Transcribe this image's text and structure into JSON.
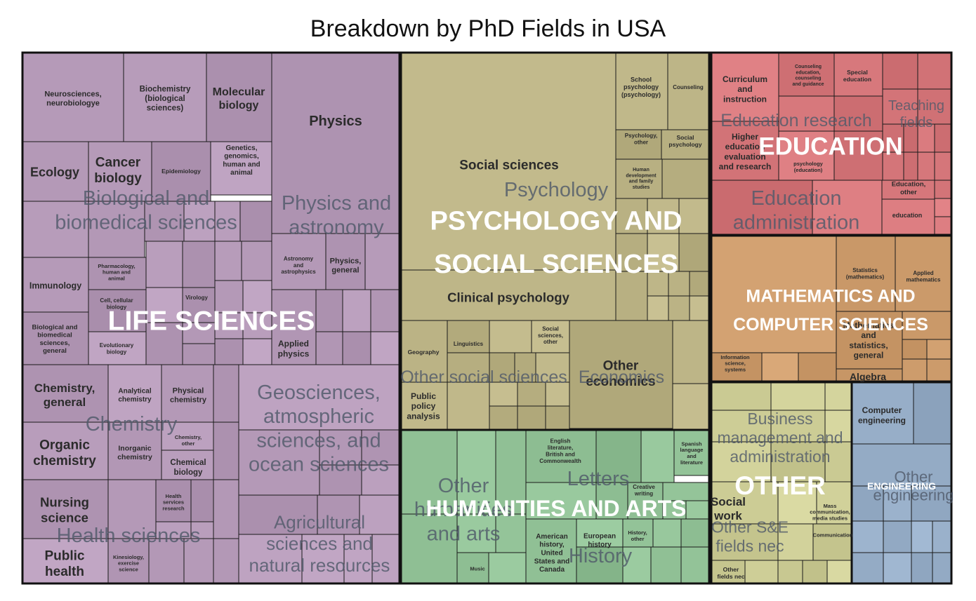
{
  "chart_data": {
    "type": "treemap",
    "title": "Breakdown by PhD Fields in USA",
    "colors": {
      "life": "#b59ab8",
      "psych": "#bcb486",
      "edu": "#d7787c",
      "math": "#cf9e6e",
      "hum": "#8fbf94",
      "other": "#cdcd96",
      "eng": "#97aec8"
    },
    "groups": [
      {
        "key": "life",
        "name": "LIFE SCIENCES",
        "subgroups": [
          {
            "name": "Biological and biomedical sciences",
            "lines": [
              "Biological and",
              "biomedical sciences"
            ]
          },
          {
            "name": "Physics and astronomy",
            "lines": [
              "Physics and",
              "astronomy"
            ]
          },
          {
            "name": "Chemistry",
            "lines": [
              "Chemistry"
            ]
          },
          {
            "name": "Geosciences, atmospheric sciences, and ocean sciences",
            "lines": [
              "Geosciences,",
              "atmospheric",
              "sciences, and",
              "ocean sciences"
            ]
          },
          {
            "name": "Agricultural sciences and natural resources",
            "lines": [
              "Agricultural",
              "sciences and",
              "natural resources"
            ]
          },
          {
            "name": "Health sciences",
            "lines": [
              "Health sciences"
            ]
          }
        ],
        "fields": [
          {
            "name": "Neurosciences, neurobiologye",
            "lines": [
              "Neurosciences,",
              "neurobiologye"
            ]
          },
          {
            "name": "Biochemistry (biological sciences)",
            "lines": [
              "Biochemistry",
              "(biological",
              "sciences)"
            ]
          },
          {
            "name": "Molecular biology",
            "lines": [
              "Molecular",
              "biology"
            ]
          },
          {
            "name": "Physics",
            "lines": [
              "Physics"
            ]
          },
          {
            "name": "Ecology",
            "lines": [
              "Ecology"
            ]
          },
          {
            "name": "Cancer biology",
            "lines": [
              "Cancer",
              "biology"
            ]
          },
          {
            "name": "Epidemiology",
            "lines": [
              "Epidemiology"
            ]
          },
          {
            "name": "Genetics, genomics, human and animal",
            "lines": [
              "Genetics,",
              "genomics,",
              "human and",
              "animal"
            ]
          },
          {
            "name": "Pharmacology, human and animal",
            "lines": [
              "Pharmacology,",
              "human and",
              "animal"
            ]
          },
          {
            "name": "Immunology",
            "lines": [
              "Immunology"
            ]
          },
          {
            "name": "Cell, cellular biology",
            "lines": [
              "Cell, cellular",
              "biology"
            ]
          },
          {
            "name": "Virology",
            "lines": [
              "Virology"
            ]
          },
          {
            "name": "Astronomy and astrophysics",
            "lines": [
              "Astronomy",
              "and",
              "astrophysics"
            ]
          },
          {
            "name": "Physics, general",
            "lines": [
              "Physics,",
              "general"
            ]
          },
          {
            "name": "Biological and biomedical sciences, general",
            "lines": [
              "Biological and",
              "biomedical",
              "sciences,",
              "general"
            ]
          },
          {
            "name": "Evolutionary biology",
            "lines": [
              "Evolutionary",
              "biology"
            ]
          },
          {
            "name": "Applied physics",
            "lines": [
              "Applied",
              "physics"
            ]
          },
          {
            "name": "Chemistry, general",
            "lines": [
              "Chemistry,",
              "general"
            ]
          },
          {
            "name": "Analytical chemistry",
            "lines": [
              "Analytical",
              "chemistry"
            ]
          },
          {
            "name": "Physical chemistry",
            "lines": [
              "Physical",
              "chemistry"
            ]
          },
          {
            "name": "Organic chemistry",
            "lines": [
              "Organic",
              "chemistry"
            ]
          },
          {
            "name": "Inorganic chemistry",
            "lines": [
              "Inorganic",
              "chemistry"
            ]
          },
          {
            "name": "Chemistry, other",
            "lines": [
              "Chemistry,",
              "other"
            ]
          },
          {
            "name": "Chemical biology",
            "lines": [
              "Chemical",
              "biology"
            ]
          },
          {
            "name": "Nursing science",
            "lines": [
              "Nursing",
              "science"
            ]
          },
          {
            "name": "Health services research",
            "lines": [
              "Health",
              "services",
              "research"
            ]
          },
          {
            "name": "Public health",
            "lines": [
              "Public",
              "health"
            ]
          },
          {
            "name": "Kinesiology, exercise science",
            "lines": [
              "Kinesiology,",
              "exercise",
              "science"
            ]
          }
        ]
      },
      {
        "key": "psych",
        "name": "PSYCHOLOGY AND SOCIAL SCIENCES",
        "lines": [
          "PSYCHOLOGY AND",
          "SOCIAL SCIENCES"
        ],
        "subgroups": [
          {
            "name": "Psychology",
            "lines": [
              "Psychology"
            ]
          },
          {
            "name": "Other social sciences",
            "lines": [
              "Other social sciences"
            ]
          },
          {
            "name": "Economics",
            "lines": [
              "Economics"
            ]
          }
        ],
        "fields": [
          {
            "name": "Social sciences",
            "lines": [
              "Social sciences"
            ]
          },
          {
            "name": "School psychology (psychology)",
            "lines": [
              "School",
              "psychology",
              "(psychology)"
            ]
          },
          {
            "name": "Counseling",
            "lines": [
              "Counseling"
            ]
          },
          {
            "name": "Psychology, other",
            "lines": [
              "Psychology,",
              "other"
            ]
          },
          {
            "name": "Social psychology",
            "lines": [
              "Social",
              "psychology"
            ]
          },
          {
            "name": "Human development and family studies",
            "lines": [
              "Human",
              "development",
              "and family",
              "studies"
            ]
          },
          {
            "name": "Clinical psychology",
            "lines": [
              "Clinical psychology"
            ]
          },
          {
            "name": "Geography",
            "lines": [
              "Geography"
            ]
          },
          {
            "name": "Linguistics",
            "lines": [
              "Linguistics"
            ]
          },
          {
            "name": "Social sciences, other",
            "lines": [
              "Social",
              "sciences,",
              "other"
            ]
          },
          {
            "name": "Public policy analysis",
            "lines": [
              "Public",
              "policy",
              "analysis"
            ]
          },
          {
            "name": "Other economics",
            "lines": [
              "Other",
              "economics"
            ]
          }
        ]
      },
      {
        "key": "edu",
        "name": "EDUCATION",
        "subgroups": [
          {
            "name": "Education research",
            "lines": [
              "Education research"
            ]
          },
          {
            "name": "Teaching fields",
            "lines": [
              "Teaching",
              "fields"
            ]
          },
          {
            "name": "Education administration",
            "lines": [
              "Education",
              "administration"
            ]
          }
        ],
        "fields": [
          {
            "name": "Curriculum and instruction",
            "lines": [
              "Curriculum",
              "and",
              "instruction"
            ]
          },
          {
            "name": "Counseling education, counseling and guidance",
            "lines": [
              "Counseling",
              "education,",
              "counseling",
              "and guidance"
            ]
          },
          {
            "name": "Special education",
            "lines": [
              "Special",
              "education"
            ]
          },
          {
            "name": "Higher education evaluation and research",
            "lines": [
              "Higher",
              "education",
              "evaluation",
              "and research"
            ]
          },
          {
            "name": "psychology (education)",
            "lines": [
              "psychology",
              "(education)"
            ]
          },
          {
            "name": "Education, other",
            "lines": [
              "Education,",
              "other"
            ]
          },
          {
            "name": "education",
            "lines": [
              "education"
            ]
          }
        ]
      },
      {
        "key": "math",
        "name": "MATHEMATICS AND COMPUTER SCIENCES",
        "lines": [
          "MATHEMATICS AND",
          "COMPUTER SCIENCES"
        ],
        "subgroups": [],
        "fields": [
          {
            "name": "Statistics (mathematics)",
            "lines": [
              "Statistics",
              "(mathematics)"
            ]
          },
          {
            "name": "Applied mathematics",
            "lines": [
              "Applied",
              "mathematics"
            ]
          },
          {
            "name": "Mathematics and statistics, general",
            "lines": [
              "Mathematics",
              "and",
              "statistics,",
              "general"
            ]
          },
          {
            "name": "Algebra",
            "lines": [
              "Algebra"
            ]
          },
          {
            "name": "Information science, systems",
            "lines": [
              "Information",
              "science,",
              "systems"
            ]
          }
        ]
      },
      {
        "key": "hum",
        "name": "HUMANITIES AND ARTS",
        "subgroups": [
          {
            "name": "Other humanities and arts",
            "lines": [
              "Other",
              "humanities",
              "and arts"
            ]
          },
          {
            "name": "Letters",
            "lines": [
              "Letters"
            ]
          },
          {
            "name": "History",
            "lines": [
              "History"
            ]
          }
        ],
        "fields": [
          {
            "name": "English literature, British and Commonwealth",
            "lines": [
              "English",
              "literature,",
              "British and",
              "Commonwealth"
            ]
          },
          {
            "name": "Spanish language and literature",
            "lines": [
              "Spanish",
              "language",
              "and",
              "literature"
            ]
          },
          {
            "name": "Creative writing",
            "lines": [
              "Creative",
              "writing"
            ]
          },
          {
            "name": "American history, United States and Canada",
            "lines": [
              "American",
              "history,",
              "United",
              "States and",
              "Canada"
            ]
          },
          {
            "name": "European history",
            "lines": [
              "European",
              "history"
            ]
          },
          {
            "name": "History, other",
            "lines": [
              "History,",
              "other"
            ]
          },
          {
            "name": "Music",
            "lines": [
              "Music"
            ]
          }
        ]
      },
      {
        "key": "other",
        "name": "OTHER",
        "subgroups": [
          {
            "name": "Business management and administration",
            "lines": [
              "Business",
              "management and",
              "administration"
            ]
          },
          {
            "name": "Other S&E fields nec",
            "lines": [
              "Other S&E",
              "fields nec"
            ]
          }
        ],
        "fields": [
          {
            "name": "Social work",
            "lines": [
              "Social",
              "work"
            ]
          },
          {
            "name": "Mass communication, media studies",
            "lines": [
              "Mass",
              "communication,",
              "media studies"
            ]
          },
          {
            "name": "Communication",
            "lines": [
              "Communication"
            ]
          },
          {
            "name": "Other fields nec",
            "lines": [
              "Other",
              "fields nec"
            ]
          }
        ]
      },
      {
        "key": "eng",
        "name": "ENGINEERING",
        "subgroups": [
          {
            "name": "Other engineering",
            "lines": [
              "Other",
              "engineering"
            ]
          }
        ],
        "fields": [
          {
            "name": "Computer engineering",
            "lines": [
              "Computer",
              "engineering"
            ]
          }
        ]
      }
    ]
  }
}
